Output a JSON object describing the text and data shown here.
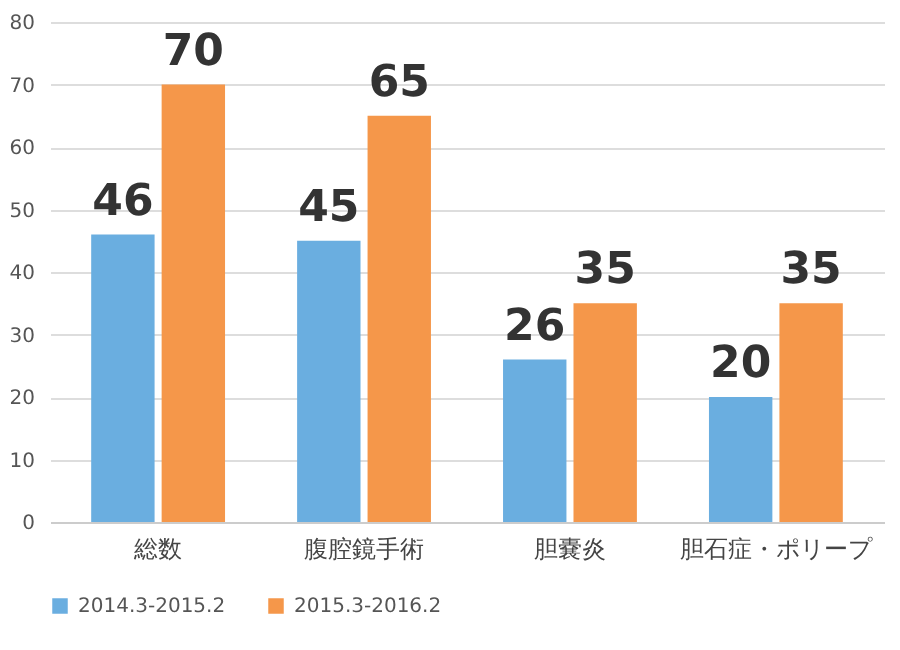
{
  "chart_data": {
    "type": "bar",
    "categories": [
      "総数",
      "腹腔鏡手術",
      "胆嚢炎",
      "胆石症・ポリープ"
    ],
    "series": [
      {
        "name": "2014.3-2015.2",
        "color": "#6aaee0",
        "values": [
          46,
          45,
          26,
          20
        ]
      },
      {
        "name": "2015.3-2016.2",
        "color": "#f5974a",
        "values": [
          70,
          65,
          35,
          35
        ]
      }
    ],
    "ylim": [
      0,
      80
    ],
    "yticks": [
      0,
      10,
      20,
      30,
      40,
      50,
      60,
      70,
      80
    ],
    "grid": "y",
    "legend": "bottom",
    "data_labels": true
  }
}
